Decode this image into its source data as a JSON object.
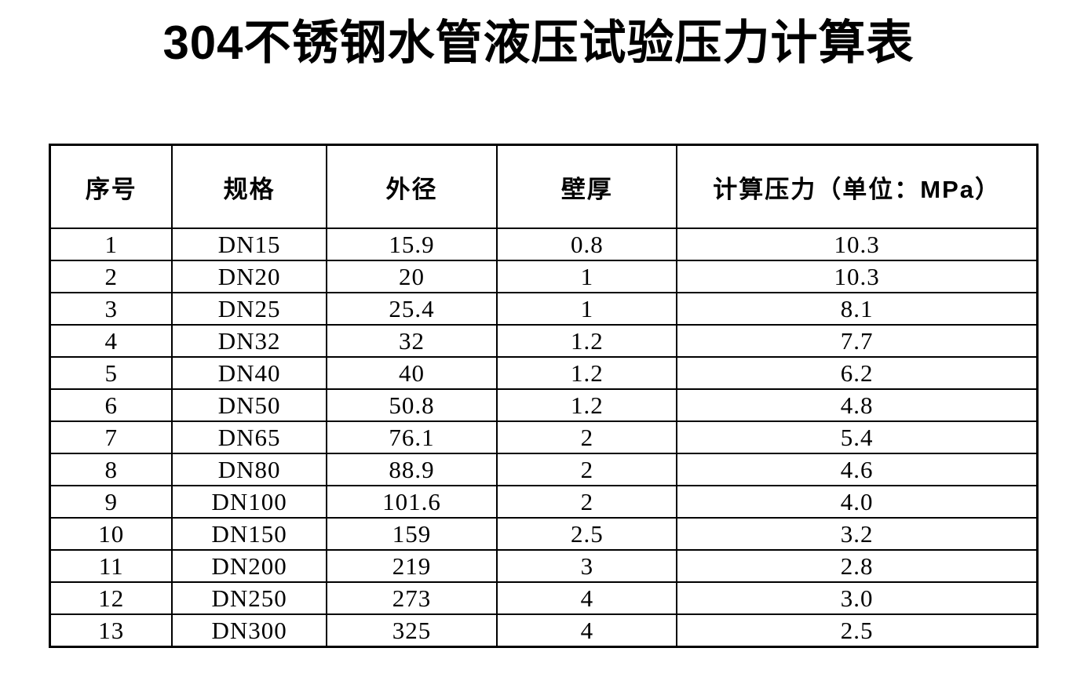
{
  "title": "304不锈钢水管液压试验压力计算表",
  "colors": {
    "background": "#ffffff",
    "text": "#000000",
    "table_border": "#000000"
  },
  "table": {
    "headers": [
      "序号",
      "规格",
      "外径",
      "壁厚",
      "计算压力（单位：MPa）"
    ],
    "rows": [
      [
        "1",
        "DN15",
        "15.9",
        "0.8",
        "10.3"
      ],
      [
        "2",
        "DN20",
        "20",
        "1",
        "10.3"
      ],
      [
        "3",
        "DN25",
        "25.4",
        "1",
        "8.1"
      ],
      [
        "4",
        "DN32",
        "32",
        "1.2",
        "7.7"
      ],
      [
        "5",
        "DN40",
        "40",
        "1.2",
        "6.2"
      ],
      [
        "6",
        "DN50",
        "50.8",
        "1.2",
        "4.8"
      ],
      [
        "7",
        "DN65",
        "76.1",
        "2",
        "5.4"
      ],
      [
        "8",
        "DN80",
        "88.9",
        "2",
        "4.6"
      ],
      [
        "9",
        "DN100",
        "101.6",
        "2",
        "4.0"
      ],
      [
        "10",
        "DN150",
        "159",
        "2.5",
        "3.2"
      ],
      [
        "11",
        "DN200",
        "219",
        "3",
        "2.8"
      ],
      [
        "12",
        "DN250",
        "273",
        "4",
        "3.0"
      ],
      [
        "13",
        "DN300",
        "325",
        "4",
        "2.5"
      ]
    ]
  }
}
